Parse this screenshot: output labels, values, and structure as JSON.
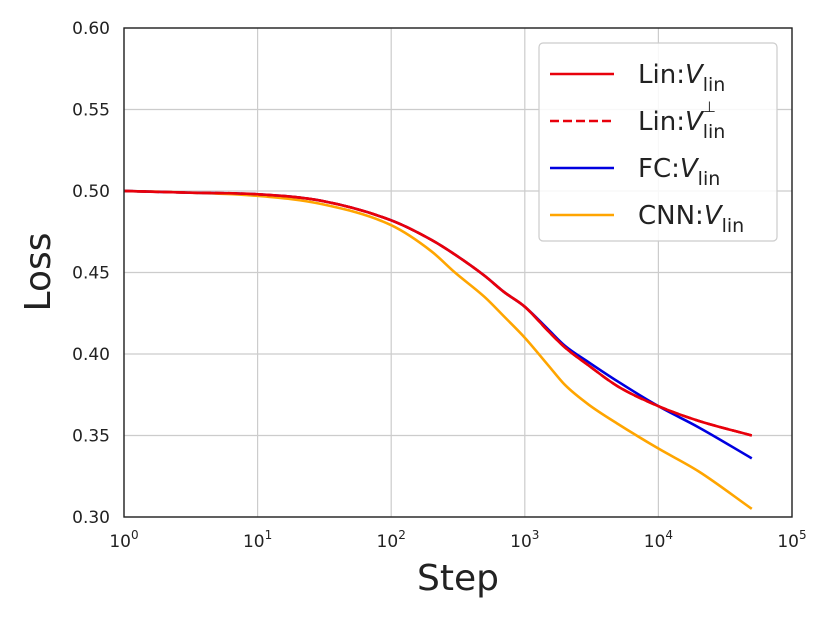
{
  "chart_data": {
    "type": "line",
    "xlabel": "Step",
    "ylabel": "Loss",
    "xscale": "log",
    "xlim": [
      1,
      100000
    ],
    "ylim": [
      0.3,
      0.6
    ],
    "x_ticks": [
      {
        "base": "10",
        "exp": "0"
      },
      {
        "base": "10",
        "exp": "1"
      },
      {
        "base": "10",
        "exp": "2"
      },
      {
        "base": "10",
        "exp": "3"
      },
      {
        "base": "10",
        "exp": "4"
      },
      {
        "base": "10",
        "exp": "5"
      }
    ],
    "y_ticks": [
      "0.30",
      "0.35",
      "0.40",
      "0.45",
      "0.50",
      "0.55",
      "0.60"
    ],
    "grid": true,
    "legend_position": "top-right",
    "series": [
      {
        "name_main": "Lin:",
        "name_var": "V",
        "name_sub": "lin",
        "name_sup": "",
        "color": "#e8000b",
        "dash": "solid",
        "x": [
          1,
          3,
          10,
          30,
          100,
          200,
          300,
          500,
          700,
          1000,
          1500,
          2000,
          3000,
          5000,
          10000,
          20000,
          50000
        ],
        "y": [
          0.5,
          0.499,
          0.498,
          0.494,
          0.482,
          0.47,
          0.461,
          0.448,
          0.438,
          0.429,
          0.414,
          0.404,
          0.393,
          0.38,
          0.368,
          0.359,
          0.35
        ]
      },
      {
        "name_main": "Lin:",
        "name_var": "V",
        "name_sub": "lin",
        "name_sup": "⊥",
        "color": "#e8000b",
        "dash": "dashed",
        "x": [
          1,
          3,
          10,
          30,
          100,
          200,
          300,
          500,
          700,
          1000,
          1500,
          2000,
          3000,
          5000,
          10000,
          20000,
          50000
        ],
        "y": [
          0.5,
          0.499,
          0.498,
          0.494,
          0.482,
          0.47,
          0.461,
          0.448,
          0.438,
          0.429,
          0.414,
          0.404,
          0.393,
          0.38,
          0.368,
          0.359,
          0.35
        ]
      },
      {
        "name_main": "FC:",
        "name_var": "V",
        "name_sub": "lin",
        "name_sup": "",
        "color": "#0000e0",
        "dash": "solid",
        "x": [
          1,
          3,
          10,
          30,
          100,
          200,
          300,
          500,
          700,
          1000,
          1500,
          2000,
          3000,
          5000,
          10000,
          20000,
          50000
        ],
        "y": [
          0.5,
          0.499,
          0.498,
          0.494,
          0.482,
          0.47,
          0.461,
          0.448,
          0.438,
          0.429,
          0.415,
          0.405,
          0.395,
          0.383,
          0.368,
          0.355,
          0.336
        ]
      },
      {
        "name_main": "CNN:",
        "name_var": "V",
        "name_sub": "lin",
        "name_sup": "",
        "color": "#ffa500",
        "dash": "solid",
        "x": [
          1,
          3,
          10,
          30,
          100,
          200,
          300,
          500,
          700,
          1000,
          1500,
          2000,
          3000,
          5000,
          10000,
          20000,
          50000
        ],
        "y": [
          0.5,
          0.499,
          0.497,
          0.492,
          0.479,
          0.463,
          0.45,
          0.435,
          0.423,
          0.41,
          0.393,
          0.381,
          0.369,
          0.357,
          0.342,
          0.328,
          0.305
        ]
      }
    ]
  }
}
